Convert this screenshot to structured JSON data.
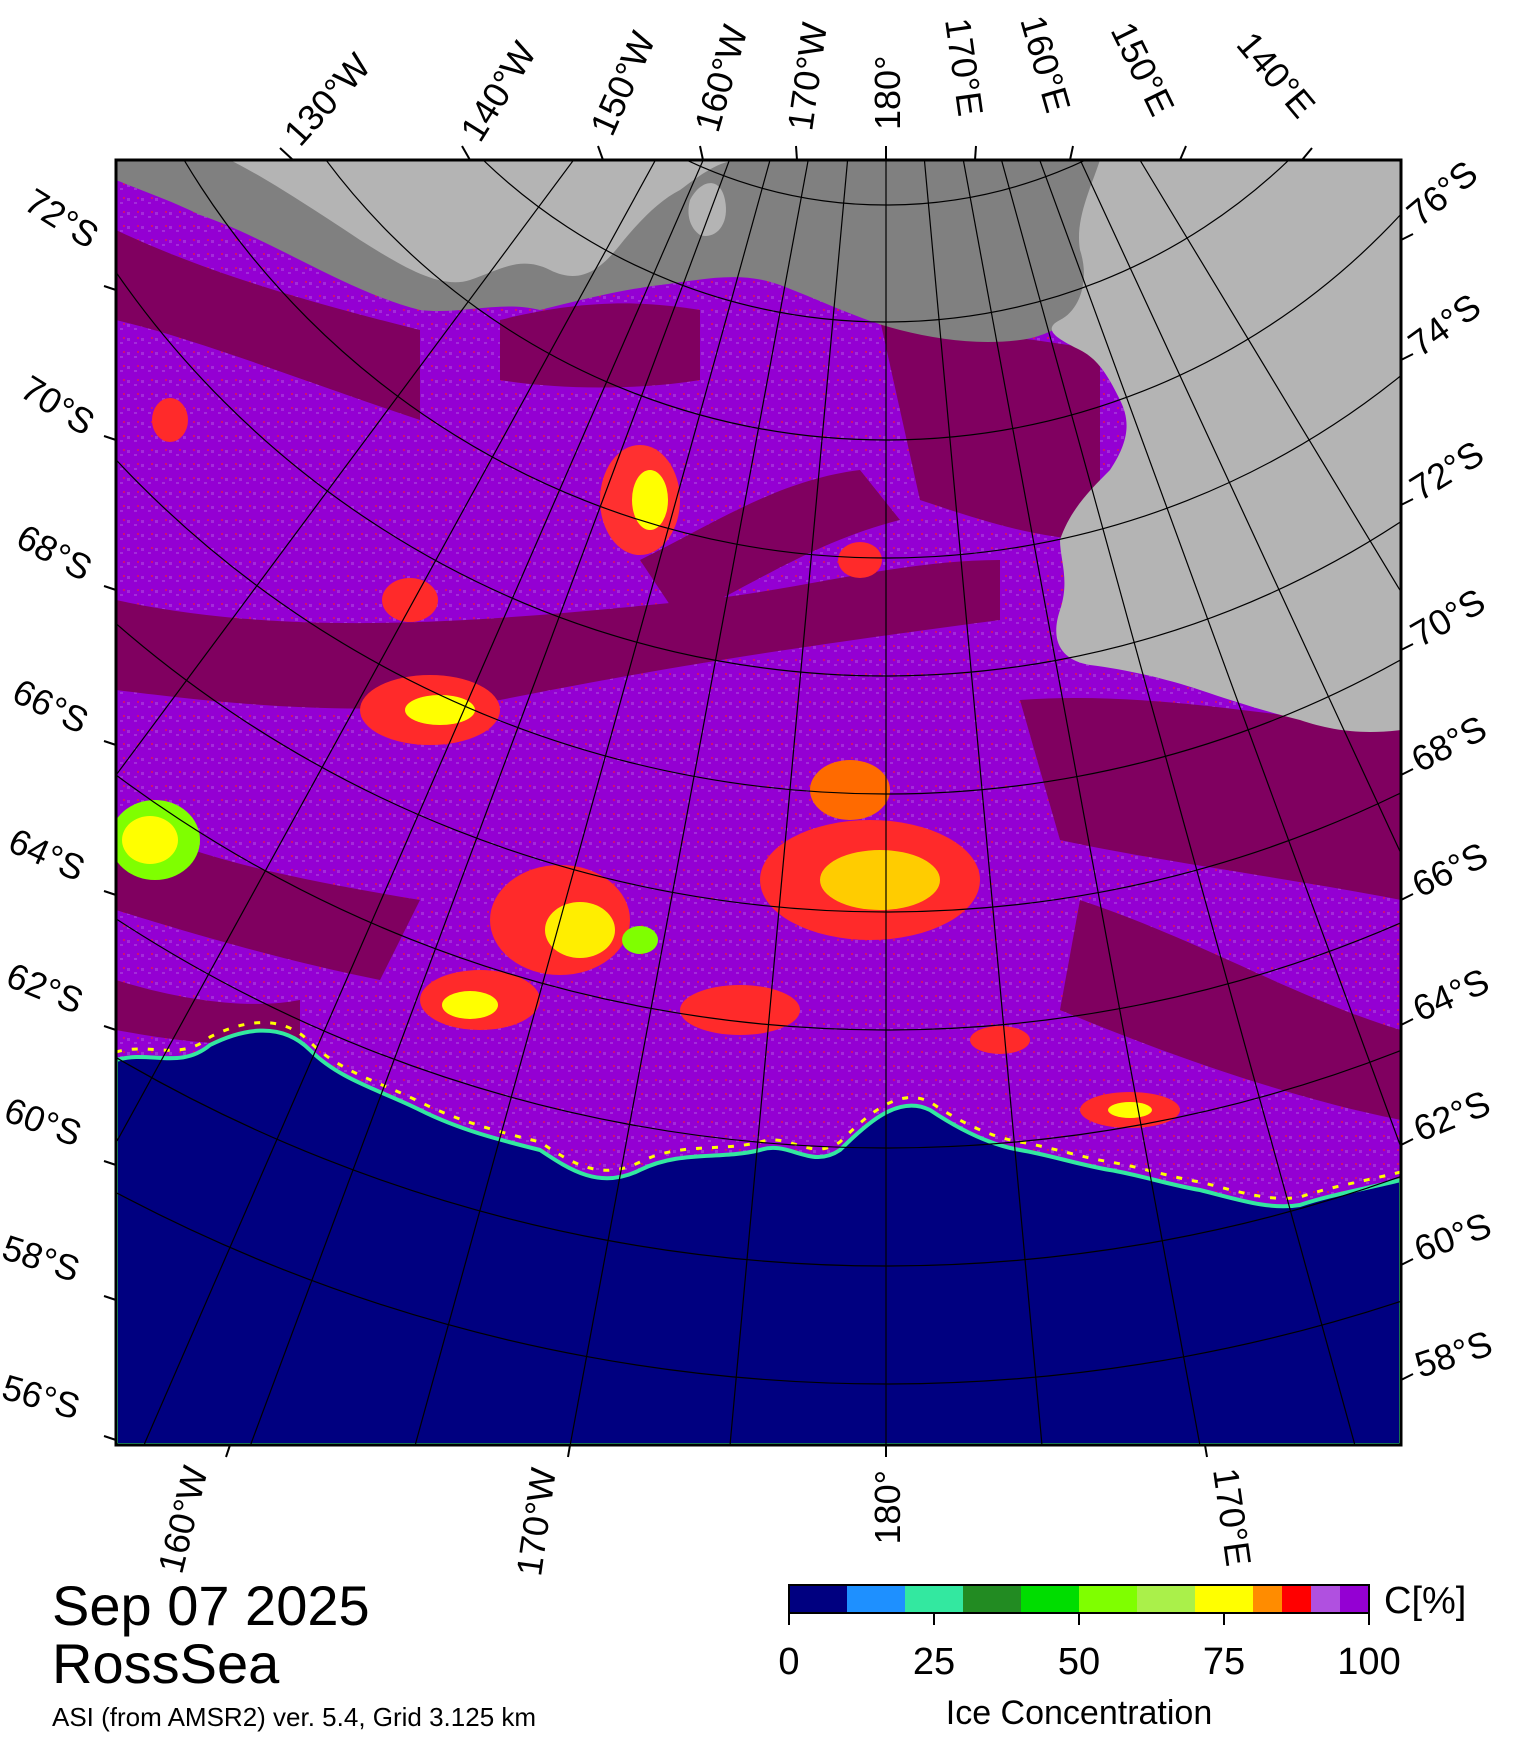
{
  "date": "Sep 07 2025",
  "region": "RossSea",
  "source_line": "ASI (from AMSR2) ver. 5.4,  Grid 3.125 km",
  "top_lon_labels": [
    "130°W",
    "140°W",
    "150°W",
    "160°W",
    "170°W",
    "180°",
    "170°E",
    "160°E",
    "150°E",
    "140°E"
  ],
  "bottom_lon_labels": [
    "160°W",
    "170°W",
    "180°",
    "170°E"
  ],
  "left_lat_labels": [
    "72°S",
    "70°S",
    "68°S",
    "66°S",
    "64°S",
    "62°S",
    "60°S",
    "58°S",
    "56°S"
  ],
  "right_lat_labels": [
    "76°S",
    "74°S",
    "72°S",
    "70°S",
    "68°S",
    "66°S",
    "64°S",
    "62°S",
    "60°S",
    "58°S"
  ],
  "colorbar": {
    "title": "Ice Concentration",
    "unit": "C[%]",
    "ticks": [
      "0",
      "25",
      "50",
      "75",
      "100"
    ],
    "colors": [
      "#000080",
      "#1e90ff",
      "#33e8a0",
      "#228b22",
      "#00dd00",
      "#7fff00",
      "#aaf04a",
      "#ffff00",
      "#ff8c00",
      "#ff0000",
      "#b050e0",
      "#9400d3"
    ]
  },
  "colors": {
    "ice_high": "#800060",
    "ice_mid": "#9400d3",
    "ice_light": "#b050e0",
    "open_ocean": "#000080",
    "land_ice": "#b4b4b4",
    "land_dark": "#808080"
  }
}
